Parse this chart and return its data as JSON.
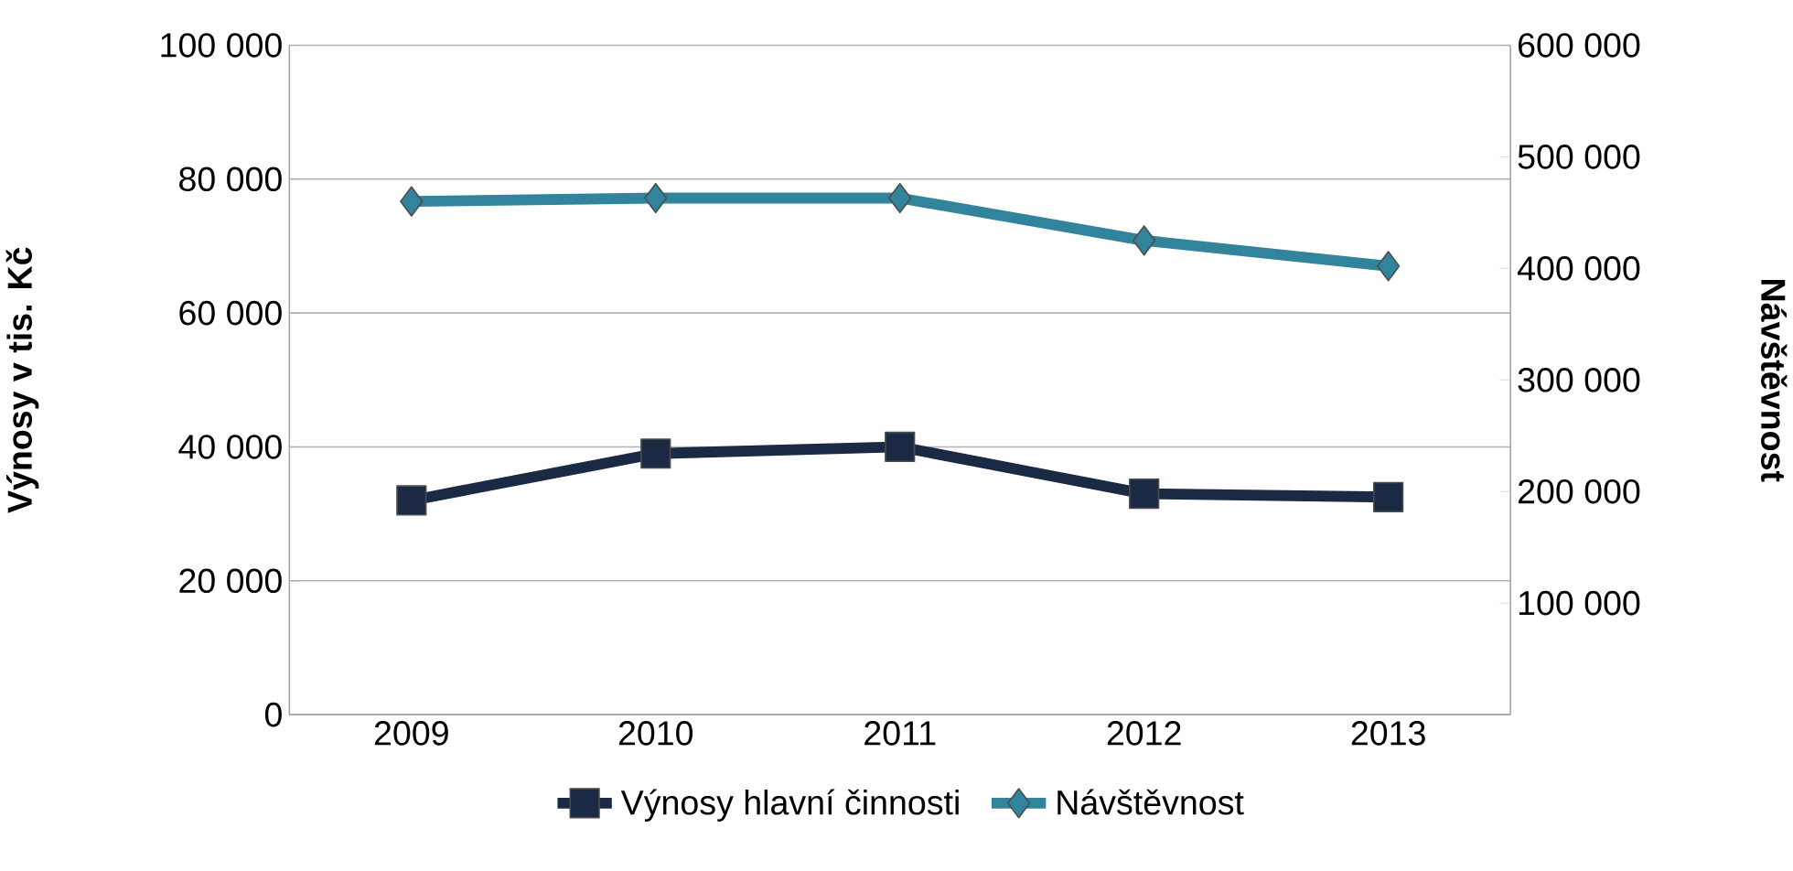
{
  "chart_data": {
    "type": "line",
    "categories": [
      "2009",
      "2010",
      "2011",
      "2012",
      "2013"
    ],
    "ylabel": "Výnosy v tis. Kč",
    "y2label": "Návštěvnost",
    "ylim": [
      0,
      100000
    ],
    "yticks": [
      0,
      {
        "value": 20000,
        "label": "20 000"
      },
      {
        "value": 40000,
        "label": "40 000"
      },
      {
        "value": 60000,
        "label": "60 000"
      },
      {
        "value": 80000,
        "label": "80 000"
      },
      {
        "value": 100000,
        "label": "100 000"
      }
    ],
    "y2lim": [
      0,
      600000
    ],
    "y2ticks": [
      {
        "value": 100000,
        "label": "100 000"
      },
      {
        "value": 200000,
        "label": "200 000"
      },
      {
        "value": 300000,
        "label": "300 000"
      },
      {
        "value": 400000,
        "label": "400 000"
      },
      {
        "value": 500000,
        "label": "500 000"
      },
      {
        "value": 600000,
        "label": "600 000"
      }
    ],
    "series": [
      {
        "name": "Výnosy hlavní činnosti",
        "color": "#1b2a44",
        "marker": "square",
        "values": [
          32000,
          39000,
          40000,
          33000,
          32500
        ]
      },
      {
        "name": "Návštěvnost",
        "color": "#31849b",
        "marker": "diamond",
        "axis": "y2",
        "values": [
          460000,
          463000,
          463000,
          425000,
          402000
        ]
      }
    ],
    "grid": "y",
    "legend": "bottom",
    "line_style": "solid"
  }
}
